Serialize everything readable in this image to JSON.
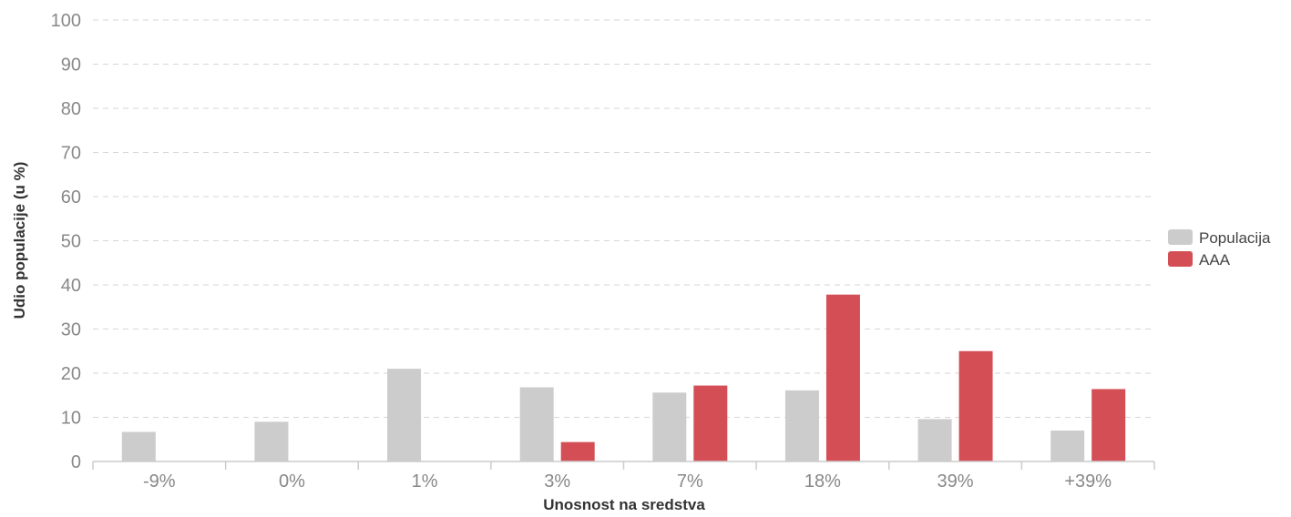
{
  "chart_data": {
    "type": "bar",
    "title": "",
    "xlabel": "Unosnost na sredstva",
    "ylabel": "Udio populacije (u %)",
    "ylim": [
      0,
      100
    ],
    "yticks": [
      0,
      10,
      20,
      30,
      40,
      50,
      60,
      70,
      80,
      90,
      100
    ],
    "categories": [
      "-9%",
      "0%",
      "1%",
      "3%",
      "7%",
      "18%",
      "39%",
      "+39%"
    ],
    "series": [
      {
        "name": "Populacija",
        "color": "#cccccc",
        "values": [
          6.7,
          9.0,
          21.0,
          16.8,
          15.6,
          16.1,
          9.6,
          7.0
        ]
      },
      {
        "name": "AAA",
        "color": "#d44f55",
        "values": [
          0,
          0,
          0,
          4.4,
          17.2,
          37.8,
          25.0,
          16.4
        ]
      }
    ],
    "grid": true,
    "legend": "right"
  }
}
